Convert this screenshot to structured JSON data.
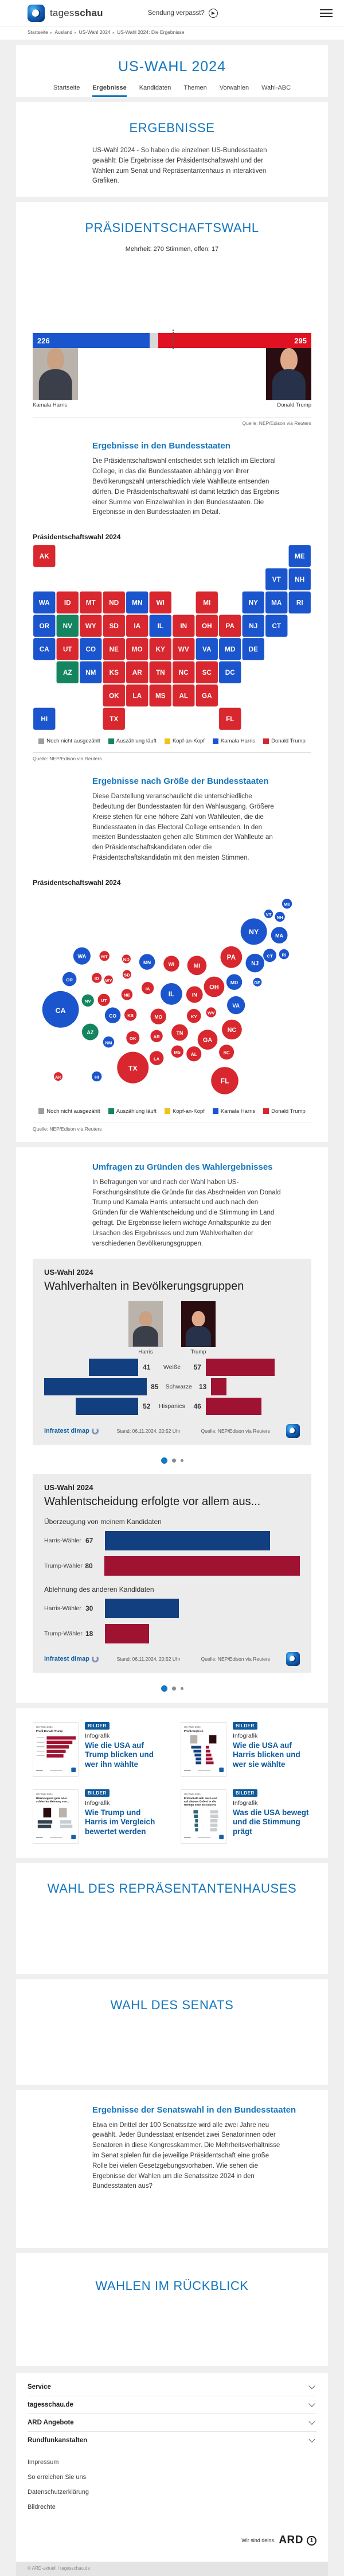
{
  "colors": {
    "harris": "#1b55cd",
    "trump": "#d8272e",
    "trump_bar": "#e01222",
    "counting": "#15855f",
    "pending": "#9e9e9e",
    "tossup": "#eec31c",
    "chart_navy": "#123f7f",
    "chart_darkred": "#a01231",
    "accent": "#1577bf",
    "thumb_teal": "#2a6475",
    "thumb_slate": "#33424e",
    "thumb_gray": "#c9cdd0"
  },
  "header": {
    "brand_regular": "tages",
    "brand_bold": "schau",
    "missed_label": "Sendung verpasst?",
    "menu_icon": "hamburger-icon"
  },
  "breadcrumb": [
    "Startseite",
    "Ausland",
    "US-Wahl 2024",
    "US-Wahl 2024: Die Ergebnisse"
  ],
  "hub": {
    "title": "US-WAHL 2024",
    "tabs": [
      {
        "label": "Startseite",
        "active": false
      },
      {
        "label": "Ergebnisse",
        "active": true
      },
      {
        "label": "Kandidaten",
        "active": false
      },
      {
        "label": "Themen",
        "active": false
      },
      {
        "label": "Vorwahlen",
        "active": false
      },
      {
        "label": "Wahl-ABC",
        "active": false
      }
    ]
  },
  "ergebnisse": {
    "heading": "ERGEBNISSE",
    "text": "US-Wahl 2024 - So haben die einzelnen US-Bundesstaaten gewählt: Die Ergebnisse der Präsidentschaftswahl und der Wahlen zum Senat und Repräsentantenhaus in interaktiven Grafiken."
  },
  "praesidentschaftswahl": {
    "heading": "PRÄSIDENTSCHAFTSWAHL",
    "majority_note": "Mehrheit: 270 Stimmen, offen: 17",
    "total_votes": 538,
    "majority": 270,
    "open_votes": 17,
    "candidates": [
      {
        "name": "Kamala Harris",
        "votes": 226
      },
      {
        "name": "Donald Trump",
        "votes": 295
      }
    ],
    "source": "Quelle: NEP/Edison via Reuters",
    "map_section": {
      "heading": "Ergebnisse in den Bundesstaaten",
      "text": "Die Präsidentschaftswahl entscheidet sich letztlich im Electoral College, in das die Bundesstaaten abhängig von ihrer Bevölkerungszahl unterschiedlich viele Wahlleute entsenden dürfen. Die Präsidentschaftswahl ist damit letztlich das Ergebnis einer Summe von Einzelwahlen in den Bundesstaaten. Die Ergebnisse in den Bundesstaaten im Detail.",
      "chart_label": "Präsidentschaftswahl 2024"
    },
    "bubble_section": {
      "heading": "Ergebnisse nach Größe der Bundesstaaten",
      "text": "Diese Darstellung veranschaulicht die unterschiedliche Bedeutung der Bundesstaaten für den Wahlausgang. Größere Kreise stehen für eine höhere Zahl von Wahlleuten, die die Bundesstaaten in das Electoral College entsenden. In den meisten Bundesstaaten gehen alle Stimmen der Wahlleute an den Präsidentschaftskandidaten oder die Präsidentschaftskandidatin mit den meisten Stimmen.",
      "chart_label": "Präsidentschaftswahl 2024"
    },
    "legend": [
      {
        "label": "Noch nicht ausgezählt",
        "key": "pending"
      },
      {
        "label": "Auszählung läuft",
        "key": "counting"
      },
      {
        "label": "Kopf-an-Kopf",
        "key": "tossup"
      },
      {
        "label": "Kamala Harris",
        "key": "harris"
      },
      {
        "label": "Donald Trump",
        "key": "trump"
      }
    ],
    "states": [
      {
        "abbr": "AK",
        "ev": 3,
        "party": "trump",
        "tile": [
          0,
          0
        ],
        "bubble": [
          73,
          314
        ]
      },
      {
        "abbr": "ME",
        "ev": 4,
        "party": "harris",
        "tile": [
          11,
          0
        ],
        "bubble": [
          459,
          23
        ]
      },
      {
        "abbr": "VT",
        "ev": 3,
        "party": "harris",
        "tile": [
          10,
          1
        ],
        "bubble": [
          428,
          40
        ]
      },
      {
        "abbr": "NH",
        "ev": 4,
        "party": "harris",
        "tile": [
          11,
          1
        ],
        "bubble": [
          447,
          45
        ]
      },
      {
        "abbr": "WA",
        "ev": 12,
        "party": "harris",
        "tile": [
          0,
          2
        ],
        "bubble": [
          113,
          111
        ]
      },
      {
        "abbr": "ID",
        "ev": 4,
        "party": "trump",
        "tile": [
          1,
          2
        ],
        "bubble": [
          138,
          148
        ]
      },
      {
        "abbr": "MT",
        "ev": 4,
        "party": "trump",
        "tile": [
          2,
          2
        ],
        "bubble": [
          151,
          111
        ]
      },
      {
        "abbr": "ND",
        "ev": 3,
        "party": "trump",
        "tile": [
          3,
          2
        ],
        "bubble": [
          188,
          116
        ]
      },
      {
        "abbr": "MN",
        "ev": 10,
        "party": "harris",
        "tile": [
          4,
          2
        ],
        "bubble": [
          223,
          121
        ]
      },
      {
        "abbr": "WI",
        "ev": 10,
        "party": "trump",
        "tile": [
          5,
          2
        ],
        "bubble": [
          264,
          124
        ]
      },
      {
        "abbr": "MI",
        "ev": 15,
        "party": "trump",
        "tile": [
          7,
          2
        ],
        "bubble": [
          307,
          127
        ]
      },
      {
        "abbr": "NY",
        "ev": 28,
        "party": "harris",
        "tile": [
          9,
          2
        ],
        "bubble": [
          403,
          70
        ]
      },
      {
        "abbr": "MA",
        "ev": 11,
        "party": "harris",
        "tile": [
          10,
          2
        ],
        "bubble": [
          446,
          76
        ]
      },
      {
        "abbr": "RI",
        "ev": 4,
        "party": "harris",
        "tile": [
          11,
          2
        ],
        "bubble": [
          454,
          108
        ]
      },
      {
        "abbr": "OR",
        "ev": 8,
        "party": "harris",
        "tile": [
          0,
          3
        ],
        "bubble": [
          92,
          150
        ]
      },
      {
        "abbr": "NV",
        "ev": 6,
        "party": "counting",
        "tile": [
          1,
          3
        ],
        "bubble": [
          123,
          186
        ]
      },
      {
        "abbr": "WY",
        "ev": 3,
        "party": "trump",
        "tile": [
          2,
          3
        ],
        "bubble": [
          158,
          151
        ]
      },
      {
        "abbr": "SD",
        "ev": 3,
        "party": "trump",
        "tile": [
          3,
          3
        ],
        "bubble": [
          189,
          142
        ]
      },
      {
        "abbr": "IA",
        "ev": 6,
        "party": "trump",
        "tile": [
          4,
          3
        ],
        "bubble": [
          224,
          165
        ]
      },
      {
        "abbr": "IL",
        "ev": 19,
        "party": "harris",
        "tile": [
          5,
          3
        ],
        "bubble": [
          264,
          175
        ]
      },
      {
        "abbr": "IN",
        "ev": 11,
        "party": "trump",
        "tile": [
          6,
          3
        ],
        "bubble": [
          303,
          176
        ]
      },
      {
        "abbr": "OH",
        "ev": 17,
        "party": "trump",
        "tile": [
          7,
          3
        ],
        "bubble": [
          336,
          163
        ]
      },
      {
        "abbr": "PA",
        "ev": 19,
        "party": "trump",
        "tile": [
          8,
          3
        ],
        "bubble": [
          365,
          113
        ]
      },
      {
        "abbr": "NJ",
        "ev": 14,
        "party": "harris",
        "tile": [
          9,
          3
        ],
        "bubble": [
          405,
          123
        ]
      },
      {
        "abbr": "CT",
        "ev": 7,
        "party": "harris",
        "tile": [
          10,
          3
        ],
        "bubble": [
          430,
          110
        ]
      },
      {
        "abbr": "CA",
        "ev": 54,
        "party": "harris",
        "tile": [
          0,
          4
        ],
        "bubble": [
          77,
          201
        ]
      },
      {
        "abbr": "UT",
        "ev": 6,
        "party": "trump",
        "tile": [
          1,
          4
        ],
        "bubble": [
          150,
          185
        ]
      },
      {
        "abbr": "CO",
        "ev": 10,
        "party": "harris",
        "tile": [
          2,
          4
        ],
        "bubble": [
          165,
          211
        ]
      },
      {
        "abbr": "NE",
        "ev": 5,
        "party": "trump",
        "tile": [
          3,
          4
        ],
        "bubble": [
          189,
          176
        ]
      },
      {
        "abbr": "MO",
        "ev": 10,
        "party": "trump",
        "tile": [
          4,
          4
        ],
        "bubble": [
          242,
          213
        ]
      },
      {
        "abbr": "KY",
        "ev": 8,
        "party": "trump",
        "tile": [
          5,
          4
        ],
        "bubble": [
          302,
          212
        ]
      },
      {
        "abbr": "WV",
        "ev": 4,
        "party": "trump",
        "tile": [
          6,
          4
        ],
        "bubble": [
          331,
          206
        ]
      },
      {
        "abbr": "VA",
        "ev": 13,
        "party": "harris",
        "tile": [
          7,
          4
        ],
        "bubble": [
          373,
          194
        ]
      },
      {
        "abbr": "MD",
        "ev": 10,
        "party": "harris",
        "tile": [
          8,
          4
        ],
        "bubble": [
          370,
          155
        ]
      },
      {
        "abbr": "DE",
        "ev": 3,
        "party": "harris",
        "tile": [
          9,
          4
        ],
        "bubble": [
          409,
          155
        ]
      },
      {
        "abbr": "AZ",
        "ev": 11,
        "party": "counting",
        "tile": [
          1,
          5
        ],
        "bubble": [
          127,
          239
        ]
      },
      {
        "abbr": "NM",
        "ev": 5,
        "party": "harris",
        "tile": [
          2,
          5
        ],
        "bubble": [
          158,
          256
        ]
      },
      {
        "abbr": "KS",
        "ev": 6,
        "party": "trump",
        "tile": [
          3,
          5
        ],
        "bubble": [
          195,
          210
        ]
      },
      {
        "abbr": "AR",
        "ev": 6,
        "party": "trump",
        "tile": [
          4,
          5
        ],
        "bubble": [
          239,
          246
        ]
      },
      {
        "abbr": "TN",
        "ev": 11,
        "party": "trump",
        "tile": [
          5,
          5
        ],
        "bubble": [
          278,
          240
        ]
      },
      {
        "abbr": "NC",
        "ev": 16,
        "party": "trump",
        "tile": [
          6,
          5
        ],
        "bubble": [
          366,
          235
        ]
      },
      {
        "abbr": "SC",
        "ev": 9,
        "party": "trump",
        "tile": [
          7,
          5
        ],
        "bubble": [
          357,
          273
        ]
      },
      {
        "abbr": "DC",
        "ev": 3,
        "party": "harris",
        "tile": [
          8,
          5
        ],
        "bubble": null
      },
      {
        "abbr": "OK",
        "ev": 7,
        "party": "trump",
        "tile": [
          3,
          6
        ],
        "bubble": [
          199,
          249
        ]
      },
      {
        "abbr": "LA",
        "ev": 8,
        "party": "trump",
        "tile": [
          4,
          6
        ],
        "bubble": [
          239,
          283
        ]
      },
      {
        "abbr": "MS",
        "ev": 6,
        "party": "trump",
        "tile": [
          5,
          6
        ],
        "bubble": [
          274,
          272
        ]
      },
      {
        "abbr": "AL",
        "ev": 9,
        "party": "trump",
        "tile": [
          6,
          6
        ],
        "bubble": [
          302,
          276
        ]
      },
      {
        "abbr": "GA",
        "ev": 16,
        "party": "trump",
        "tile": [
          7,
          6
        ],
        "bubble": [
          325,
          252
        ]
      },
      {
        "abbr": "HI",
        "ev": 4,
        "party": "harris",
        "tile": [
          0,
          7
        ],
        "bubble": [
          138,
          314
        ]
      },
      {
        "abbr": "TX",
        "ev": 40,
        "party": "trump",
        "tile": [
          3,
          7
        ],
        "bubble": [
          199,
          299
        ]
      },
      {
        "abbr": "FL",
        "ev": 30,
        "party": "trump",
        "tile": [
          8,
          7
        ],
        "bubble": [
          354,
          321
        ]
      }
    ]
  },
  "umfragen": {
    "heading": "Umfragen zu Gründen des Wahlergebnisses",
    "text": "In Befragungen vor und nach der Wahl haben US-Forschungsinstitute die Gründe für das Abschneiden von Donald Trump und Kamala Harris untersucht und auch nach den Gründen für die Wahlentscheidung und die Stimmung im Land gefragt. Die Ergebnisse liefern wichtige Anhaltspunkte zu den Ursachen des Ergebnisses und zum Wahlverhalten der verschiedenen Bevölkerungsgruppen."
  },
  "infographic_footer": {
    "brand": "infratest dimap",
    "stand": "Stand: 06.11.2024, 20:52 Uhr",
    "source": "Quelle: NEP/Edison via Reuters"
  },
  "infographic1": {
    "kicker": "US-Wahl 2024",
    "title": "Wahlverhalten in Bevölkerungsgruppen",
    "left_name": "Harris",
    "right_name": "Trump",
    "rows": [
      {
        "label": "Weiße",
        "harris": 41,
        "trump": 57
      },
      {
        "label": "Schwarze",
        "harris": 85,
        "trump": 13
      },
      {
        "label": "Hispanics",
        "harris": 52,
        "trump": 46
      }
    ]
  },
  "infographic2": {
    "kicker": "US-Wahl 2024",
    "title": "Wahlentscheidung erfolgte vor allem aus...",
    "groups": [
      {
        "heading": "Überzeugung von meinem Kandidaten",
        "rows": [
          {
            "label": "Harris-Wähler",
            "value": 67,
            "party": "harris"
          },
          {
            "label": "Trump-Wähler",
            "value": 80,
            "party": "trump"
          }
        ]
      },
      {
        "heading": "Ablehnung des anderen Kandidaten",
        "rows": [
          {
            "label": "Harris-Wähler",
            "value": 30,
            "party": "harris"
          },
          {
            "label": "Trump-Wähler",
            "value": 18,
            "party": "trump"
          }
        ]
      }
    ]
  },
  "teasers": [
    {
      "badge": "BILDER",
      "kicker": "Infografik",
      "title": "Wie die USA auf Trump blicken und wer ihn wählte",
      "thumb": {
        "kicker": "US-Wahl 2024",
        "title": "Profil Donald Trump",
        "type": "bars-red",
        "bars": [
          52,
          46,
          40,
          34,
          30
        ]
      }
    },
    {
      "badge": "BILDER",
      "kicker": "Infografik",
      "title": "Wie die USA auf Harris blicken und wer sie wählte",
      "thumb": {
        "kicker": "US-Wahl 2024",
        "title": "Profilvergleich",
        "type": "compare",
        "bars": [
          [
            18,
            6
          ],
          [
            14,
            8
          ],
          [
            12,
            10
          ],
          [
            10,
            12
          ],
          [
            10,
            14
          ]
        ]
      }
    },
    {
      "badge": "BILDER",
      "kicker": "Infografik",
      "title": "Wie Trump und Harris im Vergleich bewertet werden",
      "thumb": {
        "kicker": "US-Wahl 2024",
        "title": "Überwiegend gute oder schlechte Meinung von...",
        "type": "opinion",
        "bars": [
          [
            16,
            10
          ],
          [
            14,
            12
          ]
        ]
      }
    },
    {
      "badge": "BILDER",
      "kicker": "Infografik",
      "title": "Was die USA bewegt und die Stimmung prägt",
      "thumb": {
        "kicker": "US-Wahl 2024",
        "title": "Entwickelt sich das Land auf diesem Gebiet in die richtige oder die falsche Richtung?",
        "type": "direction",
        "bars": [
          [
            8,
            14
          ],
          [
            7,
            14
          ],
          [
            5,
            13
          ],
          [
            6,
            13
          ],
          [
            5,
            12
          ]
        ]
      }
    }
  ],
  "repraesentantenhaus": {
    "heading": "WAHL DES REPRÄSENTANTENHAUSES"
  },
  "senat": {
    "heading": "WAHL DES SENATS"
  },
  "senat_staaten": {
    "heading": "Ergebnisse der Senatswahl in den Bundesstaaten",
    "text": "Etwa ein Drittel der 100 Senatssitze wird alle zwei Jahre neu gewählt. Jeder Bundesstaat entsendet zwei Senatorinnen oder Senatoren in diese Kongresskammer. Die Mehrheitsverhältnisse im Senat spielen für die jeweilige Präsidentschaft eine große Rolle bei vielen Gesetzgebungsvorhaben. Wie sehen die Ergebnisse der Wahlen um die Senatssitze 2024 in den Bundesstaaten aus?"
  },
  "rueckblick": {
    "heading": "WAHLEN IM RÜCKBLICK"
  },
  "footer": {
    "accordions": [
      "Service",
      "tagesschau.de",
      "ARD Angebote",
      "Rundfunkanstalten"
    ],
    "links": [
      "Impressum",
      "So erreichen Sie uns",
      "Datenschutzerklärung",
      "Bildrechte"
    ],
    "ard_slogan": "Wir sind deins.",
    "ard_brand": "ARD",
    "copyright": "© ARD-aktuell / tagesschau.de"
  }
}
